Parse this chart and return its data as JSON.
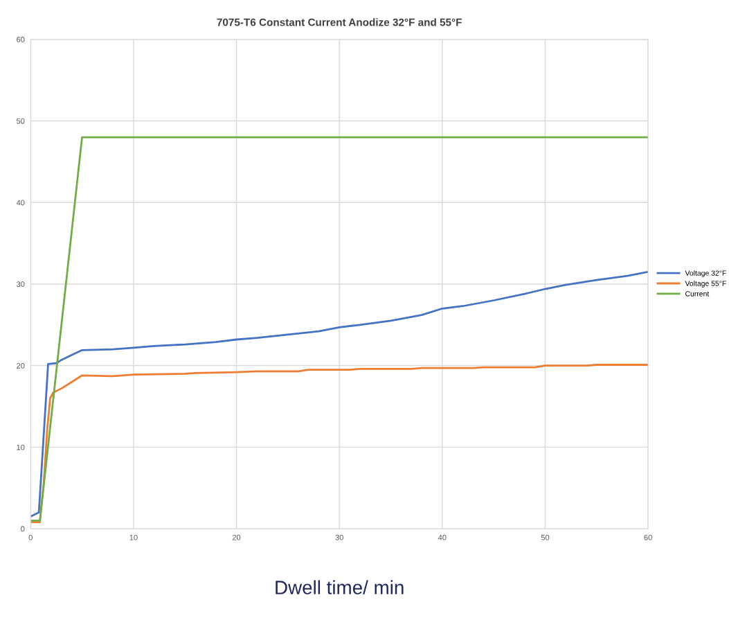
{
  "chart_data": {
    "type": "line",
    "title": "7075-T6 Constant Current Anodize 32°F and 55°F",
    "xlabel": "Dwell time/ min",
    "xlim": [
      0,
      60
    ],
    "ylim": [
      0,
      60
    ],
    "xticks": [
      0,
      10,
      20,
      30,
      40,
      50,
      60
    ],
    "yticks": [
      0,
      10,
      20,
      30,
      40,
      50,
      60
    ],
    "grid": true,
    "legend": "right",
    "marker": "none",
    "line_style": "solid",
    "series": [
      {
        "name": "Voltage 32°F",
        "color": "#4472c4",
        "x": [
          0,
          0.8,
          1.2,
          1.7,
          2.5,
          3,
          4,
          5,
          8,
          10,
          12,
          15,
          18,
          20,
          22,
          25,
          28,
          30,
          32,
          35,
          38,
          40,
          42,
          45,
          48,
          50,
          52,
          55,
          58,
          60
        ],
        "values": [
          1.5,
          2,
          10,
          20.2,
          20.3,
          20.7,
          21.3,
          21.9,
          22.0,
          22.2,
          22.4,
          22.6,
          22.9,
          23.2,
          23.4,
          23.8,
          24.2,
          24.7,
          25.0,
          25.5,
          26.2,
          27.0,
          27.3,
          28.0,
          28.8,
          29.4,
          29.9,
          30.5,
          31.0,
          31.5
        ]
      },
      {
        "name": "Voltage 55°F",
        "color": "#ed7d31",
        "x": [
          0,
          0.9,
          1.3,
          1.6,
          1.9,
          2.2,
          3,
          4,
          5,
          8,
          10,
          15,
          16,
          20,
          22,
          26,
          27,
          31,
          32,
          37,
          38,
          43,
          44,
          49,
          50,
          54,
          55,
          60
        ],
        "values": [
          0.8,
          0.8,
          6,
          12,
          16,
          16.7,
          17.2,
          18.0,
          18.8,
          18.7,
          18.9,
          19.0,
          19.1,
          19.2,
          19.3,
          19.3,
          19.5,
          19.5,
          19.6,
          19.6,
          19.7,
          19.7,
          19.8,
          19.8,
          20.0,
          20.0,
          20.1,
          20.1
        ]
      },
      {
        "name": "Current",
        "color": "#70ad47",
        "x": [
          0,
          0.9,
          5,
          60
        ],
        "values": [
          1.0,
          1.0,
          48,
          48
        ]
      }
    ]
  }
}
